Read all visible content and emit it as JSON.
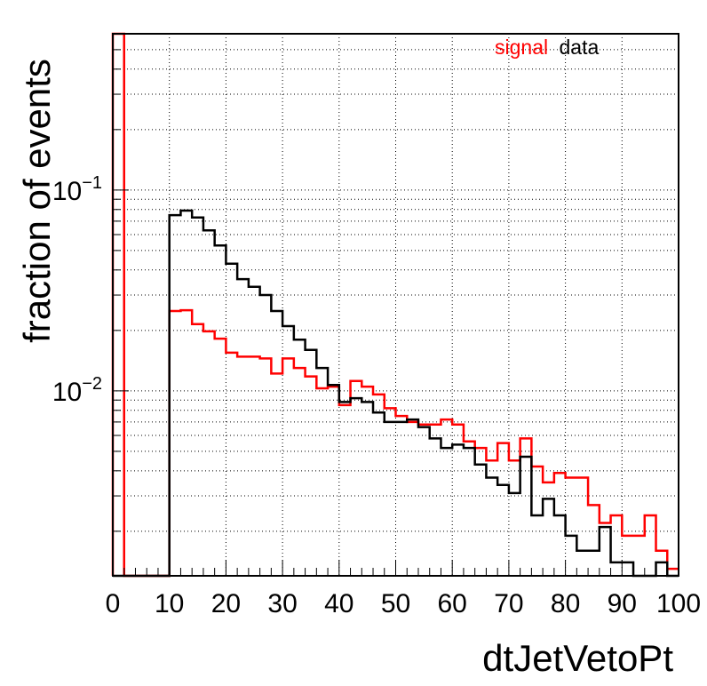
{
  "chart_data": {
    "type": "histogram",
    "xlabel": "dtJetVetoPt",
    "ylabel": "fraction of events",
    "xlim": [
      0,
      100
    ],
    "ylim": [
      0.0012,
      0.6
    ],
    "y_scale": "log",
    "grid": true,
    "legend_placement": "top-right",
    "x_ticks": [
      "0",
      "10",
      "20",
      "30",
      "40",
      "50",
      "60",
      "70",
      "80",
      "90",
      "100"
    ],
    "y_ticks": [
      {
        "value": 0.01,
        "base": "10",
        "exp": "−2"
      },
      {
        "value": 0.1,
        "base": "10",
        "exp": "−1"
      }
    ],
    "bin_edges": [
      0,
      2,
      4,
      6,
      8,
      10,
      12,
      14,
      16,
      18,
      20,
      22,
      24,
      26,
      28,
      30,
      32,
      34,
      36,
      38,
      40,
      42,
      44,
      46,
      48,
      50,
      52,
      54,
      56,
      58,
      60,
      62,
      64,
      66,
      68,
      70,
      72,
      74,
      76,
      78,
      80,
      82,
      84,
      86,
      88,
      90,
      92,
      94,
      96,
      98,
      100
    ],
    "series": [
      {
        "name": "signal",
        "color": "#ff0000",
        "values": [
          0.6,
          0,
          0,
          0,
          0,
          0.025,
          0.0252,
          0.0215,
          0.0198,
          0.0182,
          0.0155,
          0.0148,
          0.0148,
          0.0145,
          0.0122,
          0.0145,
          0.013,
          0.0118,
          0.0103,
          0.0105,
          0.0085,
          0.0112,
          0.0105,
          0.0096,
          0.0082,
          0.0075,
          0.007,
          0.0068,
          0.0068,
          0.0072,
          0.0068,
          0.0056,
          0.0052,
          0.0045,
          0.0055,
          0.0045,
          0.0058,
          0.0042,
          0.0035,
          0.0039,
          0.0037,
          0.0037,
          0.0027,
          0.0022,
          0.0024,
          0.0019,
          0.0019,
          0.0024,
          0.0016,
          0.0013
        ]
      },
      {
        "name": "data",
        "color": "#000000",
        "values": [
          0.0012,
          0,
          0,
          0,
          0,
          0.075,
          0.079,
          0.073,
          0.063,
          0.053,
          0.043,
          0.036,
          0.033,
          0.03,
          0.025,
          0.021,
          0.018,
          0.016,
          0.013,
          0.0107,
          0.0088,
          0.0092,
          0.0088,
          0.0078,
          0.007,
          0.007,
          0.0072,
          0.0066,
          0.0058,
          0.0052,
          0.0054,
          0.0052,
          0.0043,
          0.0037,
          0.0034,
          0.0031,
          0.0047,
          0.0024,
          0.0029,
          0.0024,
          0.0019,
          0.0016,
          0.0016,
          0.0021,
          0.0014,
          0.0014,
          0.0012,
          0.0012,
          0.0014,
          0.0012
        ]
      }
    ]
  }
}
